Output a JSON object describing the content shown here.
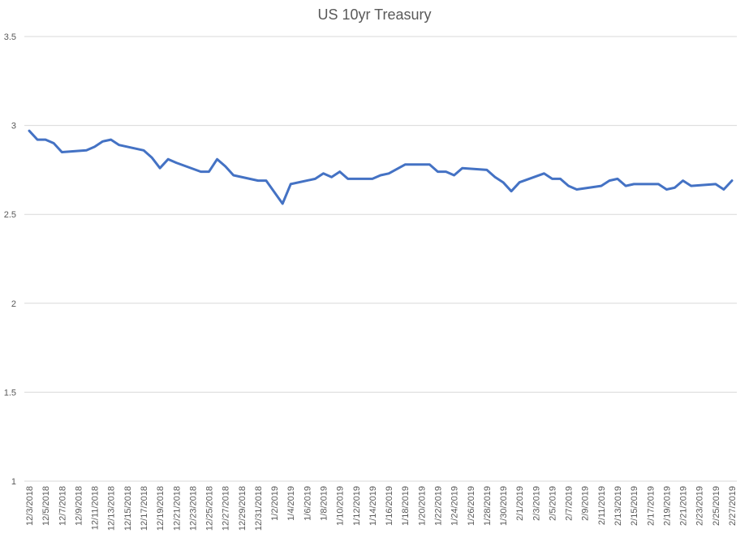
{
  "chart_data": {
    "type": "line",
    "title": "US 10yr Treasury",
    "xlabel": "",
    "ylabel": "",
    "ylim": [
      1,
      3.5
    ],
    "yticks": [
      1,
      1.5,
      2,
      2.5,
      3,
      3.5
    ],
    "ytick_labels": [
      "1",
      "1.5",
      "2",
      "2.5",
      "3",
      "3.5"
    ],
    "grid": true,
    "legend": "none",
    "x_start": "12/3/2018",
    "x_end": "2/27/2019",
    "xtick_labels": [
      "12/3/2018",
      "12/5/2018",
      "12/7/2018",
      "12/9/2018",
      "12/11/2018",
      "12/13/2018",
      "12/15/2018",
      "12/17/2018",
      "12/19/2018",
      "12/21/2018",
      "12/23/2018",
      "12/25/2018",
      "12/27/2018",
      "12/29/2018",
      "12/31/2018",
      "1/2/2019",
      "1/4/2019",
      "1/6/2019",
      "1/8/2019",
      "1/10/2019",
      "1/12/2019",
      "1/14/2019",
      "1/16/2019",
      "1/18/2019",
      "1/20/2019",
      "1/22/2019",
      "1/24/2019",
      "1/26/2019",
      "1/28/2019",
      "1/30/2019",
      "2/1/2019",
      "2/3/2019",
      "2/5/2019",
      "2/7/2019",
      "2/9/2019",
      "2/11/2019",
      "2/13/2019",
      "2/15/2019",
      "2/17/2019",
      "2/19/2019",
      "2/21/2019",
      "2/23/2019",
      "2/25/2019",
      "2/27/2019"
    ],
    "series": [
      {
        "name": "",
        "color": "#4472c4",
        "points": [
          {
            "x": "12/3/2018",
            "y": 2.97
          },
          {
            "x": "12/4/2018",
            "y": 2.92
          },
          {
            "x": "12/5/2018",
            "y": 2.92
          },
          {
            "x": "12/6/2018",
            "y": 2.9
          },
          {
            "x": "12/7/2018",
            "y": 2.85
          },
          {
            "x": "12/10/2018",
            "y": 2.86
          },
          {
            "x": "12/11/2018",
            "y": 2.88
          },
          {
            "x": "12/12/2018",
            "y": 2.91
          },
          {
            "x": "12/13/2018",
            "y": 2.92
          },
          {
            "x": "12/14/2018",
            "y": 2.89
          },
          {
            "x": "12/17/2018",
            "y": 2.86
          },
          {
            "x": "12/18/2018",
            "y": 2.82
          },
          {
            "x": "12/19/2018",
            "y": 2.76
          },
          {
            "x": "12/20/2018",
            "y": 2.81
          },
          {
            "x": "12/21/2018",
            "y": 2.79
          },
          {
            "x": "12/24/2018",
            "y": 2.74
          },
          {
            "x": "12/25/2018",
            "y": 2.74
          },
          {
            "x": "12/26/2018",
            "y": 2.81
          },
          {
            "x": "12/27/2018",
            "y": 2.77
          },
          {
            "x": "12/28/2018",
            "y": 2.72
          },
          {
            "x": "12/31/2018",
            "y": 2.69
          },
          {
            "x": "1/1/2019",
            "y": 2.69
          },
          {
            "x": "1/3/2019",
            "y": 2.56
          },
          {
            "x": "1/4/2019",
            "y": 2.67
          },
          {
            "x": "1/7/2019",
            "y": 2.7
          },
          {
            "x": "1/8/2019",
            "y": 2.73
          },
          {
            "x": "1/9/2019",
            "y": 2.71
          },
          {
            "x": "1/10/2019",
            "y": 2.74
          },
          {
            "x": "1/11/2019",
            "y": 2.7
          },
          {
            "x": "1/14/2019",
            "y": 2.7
          },
          {
            "x": "1/15/2019",
            "y": 2.72
          },
          {
            "x": "1/16/2019",
            "y": 2.73
          },
          {
            "x": "1/18/2019",
            "y": 2.78
          },
          {
            "x": "1/21/2019",
            "y": 2.78
          },
          {
            "x": "1/22/2019",
            "y": 2.74
          },
          {
            "x": "1/23/2019",
            "y": 2.74
          },
          {
            "x": "1/24/2019",
            "y": 2.72
          },
          {
            "x": "1/25/2019",
            "y": 2.76
          },
          {
            "x": "1/28/2019",
            "y": 2.75
          },
          {
            "x": "1/29/2019",
            "y": 2.71
          },
          {
            "x": "1/30/2019",
            "y": 2.68
          },
          {
            "x": "1/31/2019",
            "y": 2.63
          },
          {
            "x": "2/1/2019",
            "y": 2.68
          },
          {
            "x": "2/4/2019",
            "y": 2.73
          },
          {
            "x": "2/5/2019",
            "y": 2.7
          },
          {
            "x": "2/6/2019",
            "y": 2.7
          },
          {
            "x": "2/7/2019",
            "y": 2.66
          },
          {
            "x": "2/8/2019",
            "y": 2.64
          },
          {
            "x": "2/11/2019",
            "y": 2.66
          },
          {
            "x": "2/12/2019",
            "y": 2.69
          },
          {
            "x": "2/13/2019",
            "y": 2.7
          },
          {
            "x": "2/14/2019",
            "y": 2.66
          },
          {
            "x": "2/15/2019",
            "y": 2.67
          },
          {
            "x": "2/18/2019",
            "y": 2.67
          },
          {
            "x": "2/19/2019",
            "y": 2.64
          },
          {
            "x": "2/20/2019",
            "y": 2.65
          },
          {
            "x": "2/21/2019",
            "y": 2.69
          },
          {
            "x": "2/22/2019",
            "y": 2.66
          },
          {
            "x": "2/25/2019",
            "y": 2.67
          },
          {
            "x": "2/26/2019",
            "y": 2.64
          },
          {
            "x": "2/27/2019",
            "y": 2.69
          }
        ]
      }
    ]
  }
}
